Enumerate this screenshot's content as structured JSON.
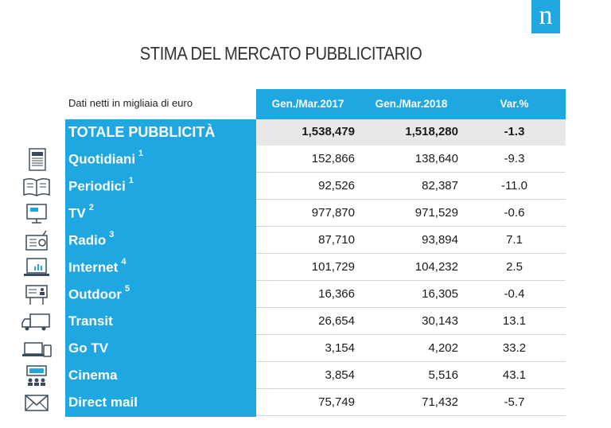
{
  "brand": {
    "logo_letter": "n",
    "accent_color": "#1ea7e1"
  },
  "title": "STIMA DEL MERCATO PUBBLICITARIO",
  "unit_note": "Dati netti in migliaia di euro",
  "columns": [
    "Gen./Mar.2017",
    "Gen./Mar.2018",
    "Var.%"
  ],
  "rows": [
    {
      "label": "TOTALE PUBBLICITÀ",
      "note": "",
      "v2017": "1,538,479",
      "v2018": "1,518,280",
      "var": "-1.3",
      "icon": ""
    },
    {
      "label": "Quotidiani",
      "note": "1",
      "v2017": "152,866",
      "v2018": "138,640",
      "var": "-9.3",
      "icon": "newspaper-icon"
    },
    {
      "label": "Periodici",
      "note": "1",
      "v2017": "92,526",
      "v2018": "82,387",
      "var": "-11.0",
      "icon": "open-book-icon"
    },
    {
      "label": "TV",
      "note": "2",
      "v2017": "977,870",
      "v2018": "971,529",
      "var": "-0.6",
      "icon": "tv-icon"
    },
    {
      "label": "Radio",
      "note": "3",
      "v2017": "87,710",
      "v2018": "93,894",
      "var": "7.1",
      "icon": "radio-icon"
    },
    {
      "label": "Internet",
      "note": "4",
      "v2017": "101,729",
      "v2018": "104,232",
      "var": "2.5",
      "icon": "laptop-icon"
    },
    {
      "label": "Outdoor",
      "note": "5",
      "v2017": "16,366",
      "v2018": "16,305",
      "var": "-0.4",
      "icon": "billboard-icon"
    },
    {
      "label": "Transit",
      "note": "",
      "v2017": "26,654",
      "v2018": "30,143",
      "var": "13.1",
      "icon": "truck-icon"
    },
    {
      "label": "Go TV",
      "note": "",
      "v2017": "3,154",
      "v2018": "4,202",
      "var": "33.2",
      "icon": "devices-icon"
    },
    {
      "label": "Cinema",
      "note": "",
      "v2017": "3,854",
      "v2018": "5,516",
      "var": "43.1",
      "icon": "cinema-icon"
    },
    {
      "label": "Direct mail",
      "note": "",
      "v2017": "75,749",
      "v2018": "71,432",
      "var": "-5.7",
      "icon": "envelope-icon"
    }
  ]
}
